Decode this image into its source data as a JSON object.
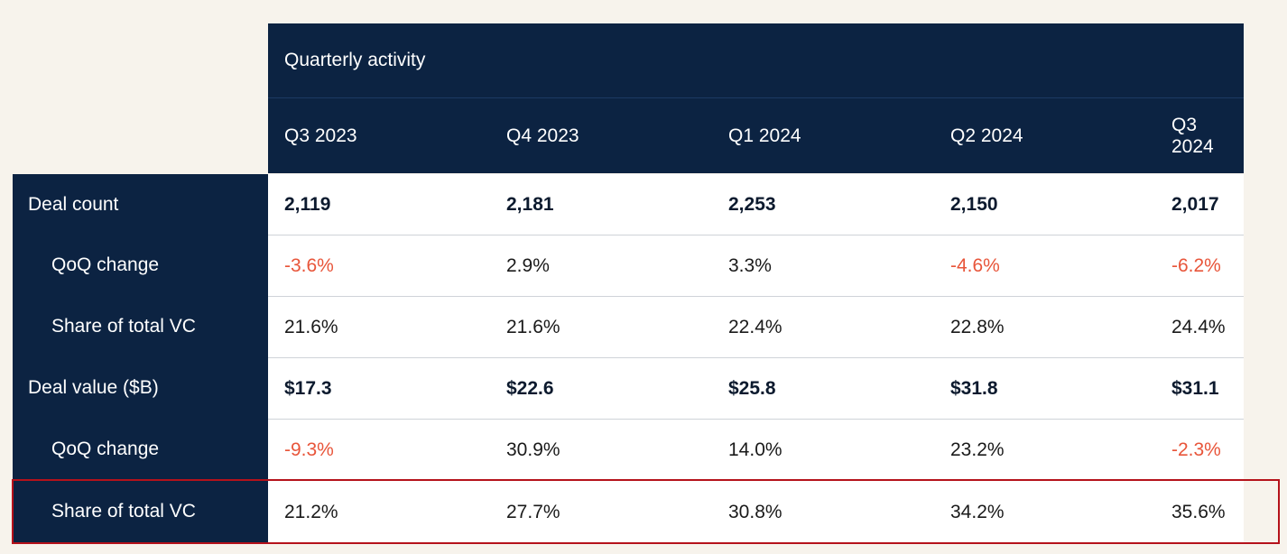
{
  "table": {
    "title": "Quarterly activity",
    "quarters": [
      "Q3 2023",
      "Q4 2023",
      "Q1 2024",
      "Q2 2024",
      "Q3 2024"
    ],
    "rows": [
      {
        "label": "Deal count",
        "type": "main",
        "values": [
          "2,119",
          "2,181",
          "2,253",
          "2,150",
          "2,017"
        ],
        "negative": [
          false,
          false,
          false,
          false,
          false
        ]
      },
      {
        "label": "QoQ change",
        "type": "sub",
        "values": [
          "-3.6%",
          "2.9%",
          "3.3%",
          "-4.6%",
          "-6.2%"
        ],
        "negative": [
          true,
          false,
          false,
          true,
          true
        ]
      },
      {
        "label": "Share of total VC",
        "type": "sub",
        "values": [
          "21.6%",
          "21.6%",
          "22.4%",
          "22.8%",
          "24.4%"
        ],
        "negative": [
          false,
          false,
          false,
          false,
          false
        ]
      },
      {
        "label": "Deal value ($B)",
        "type": "main",
        "values": [
          "$17.3",
          "$22.6",
          "$25.8",
          "$31.8",
          "$31.1"
        ],
        "negative": [
          false,
          false,
          false,
          false,
          false
        ]
      },
      {
        "label": "QoQ change",
        "type": "sub",
        "values": [
          "-9.3%",
          "30.9%",
          "14.0%",
          "23.2%",
          "-2.3%"
        ],
        "negative": [
          true,
          false,
          false,
          false,
          true
        ]
      },
      {
        "label": "Share of total VC",
        "type": "sub",
        "values": [
          "21.2%",
          "27.7%",
          "30.8%",
          "34.2%",
          "35.6%"
        ],
        "negative": [
          false,
          false,
          false,
          false,
          false
        ],
        "highlighted": true
      }
    ]
  },
  "colors": {
    "navy": "#0c2342",
    "background": "#f7f3ec",
    "negative": "#e8553a",
    "highlight_border": "#b5121b"
  }
}
